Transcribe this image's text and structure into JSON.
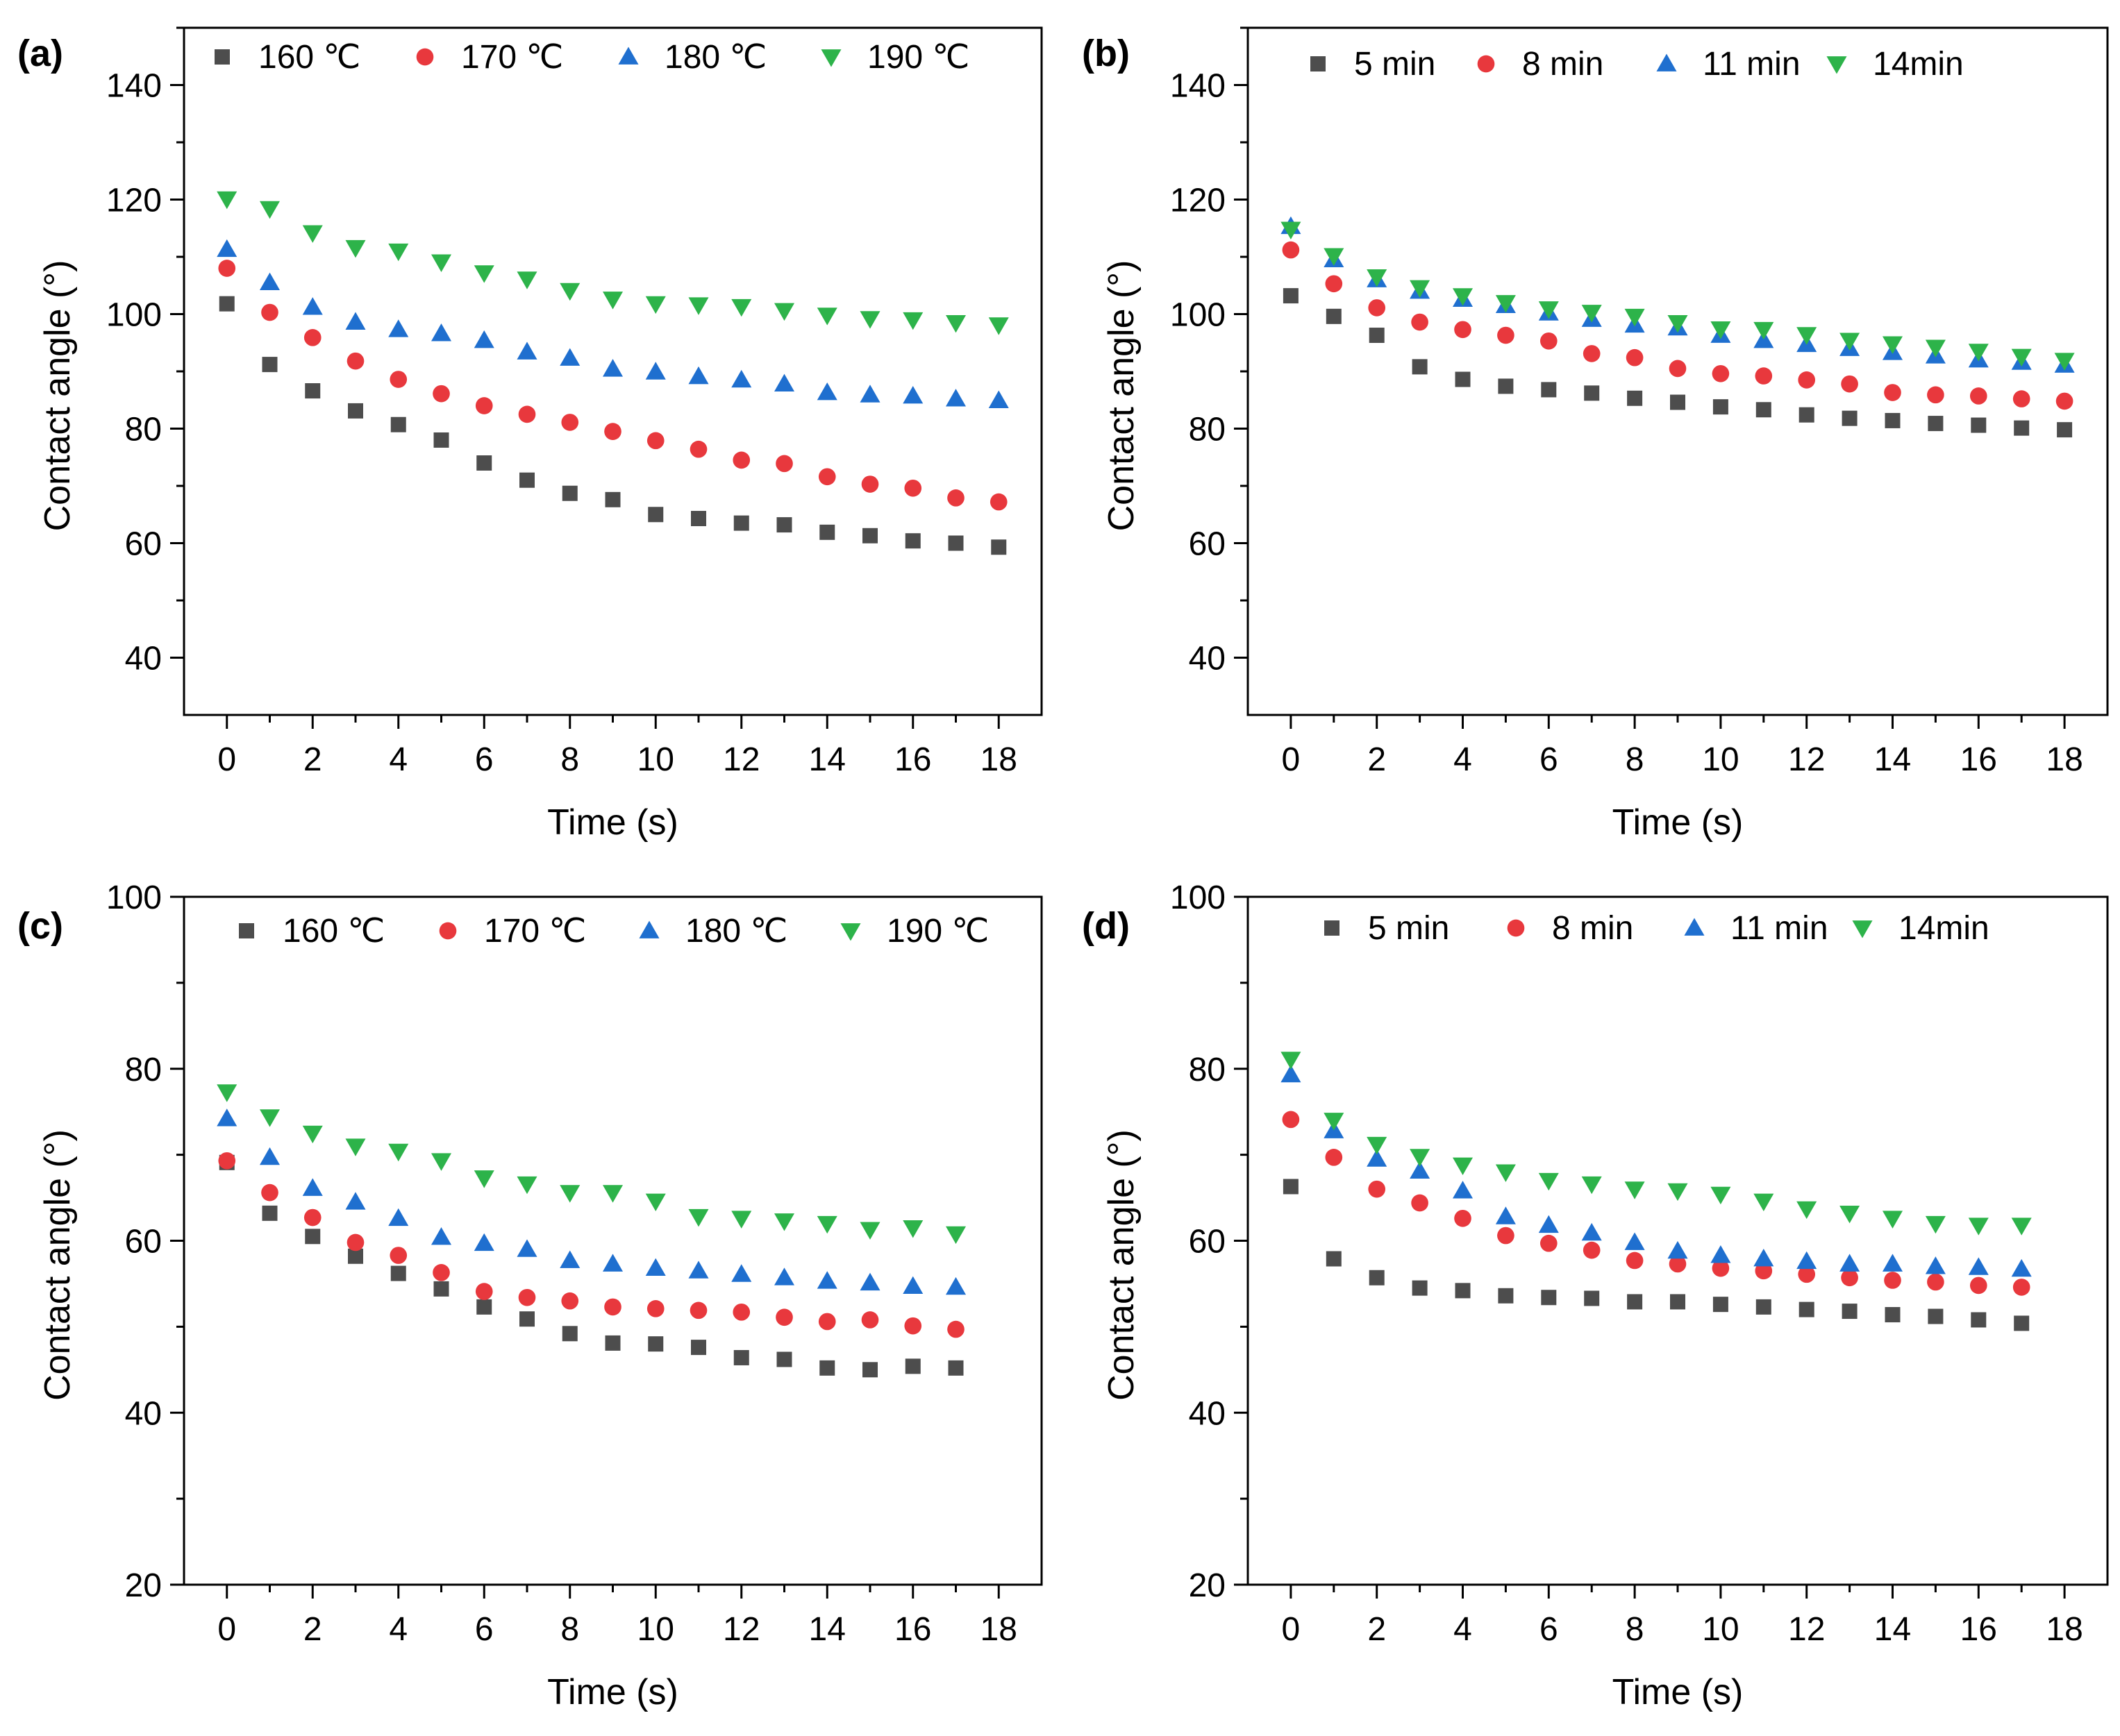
{
  "chart_data": [
    {
      "type": "scatter",
      "panel_label": "(a)",
      "xlabel": "Time (s)",
      "ylabel": "Contact angle (°)",
      "xlim": [
        -1,
        19
      ],
      "ylim": [
        30,
        150
      ],
      "xticks": [
        0,
        2,
        4,
        6,
        8,
        10,
        12,
        14,
        16,
        18
      ],
      "yticks": [
        40,
        60,
        80,
        100,
        120,
        140
      ],
      "legend_position": "top",
      "series": [
        {
          "name": "160 ℃",
          "marker": "square",
          "color": "#4d4d4d",
          "x": [
            0,
            1,
            2,
            3,
            4,
            5,
            6,
            7,
            8,
            9,
            10,
            11,
            12,
            13,
            14,
            15,
            16,
            17,
            18
          ],
          "values": [
            101.8,
            91.2,
            86.6,
            83.1,
            80.7,
            78.0,
            74.0,
            71.0,
            68.7,
            67.6,
            65.0,
            64.3,
            63.5,
            63.2,
            61.9,
            61.3,
            60.4,
            60.0,
            59.3
          ]
        },
        {
          "name": "170 ℃",
          "marker": "circle",
          "color": "#e8383d",
          "x": [
            0,
            1,
            2,
            3,
            4,
            5,
            6,
            7,
            8,
            9,
            10,
            11,
            12,
            13,
            14,
            15,
            16,
            17,
            18
          ],
          "values": [
            108.0,
            100.3,
            95.9,
            91.8,
            88.6,
            86.1,
            84.0,
            82.5,
            81.1,
            79.5,
            77.9,
            76.4,
            74.5,
            73.9,
            71.6,
            70.3,
            69.6,
            67.9,
            67.2
          ]
        },
        {
          "name": "180 ℃",
          "marker": "triangle-up",
          "color": "#1f6fcf",
          "x": [
            0,
            1,
            2,
            3,
            4,
            5,
            6,
            7,
            8,
            9,
            10,
            11,
            12,
            13,
            14,
            15,
            16,
            17,
            18
          ],
          "values": [
            111.3,
            105.5,
            101.2,
            98.6,
            97.3,
            96.6,
            95.4,
            93.4,
            92.3,
            90.4,
            89.9,
            89.1,
            88.5,
            87.8,
            86.3,
            85.9,
            85.7,
            85.2,
            84.9
          ]
        },
        {
          "name": "190 ℃",
          "marker": "triangle-down",
          "color": "#2db34a",
          "x": [
            0,
            1,
            2,
            3,
            4,
            5,
            6,
            7,
            8,
            9,
            10,
            11,
            12,
            13,
            14,
            15,
            16,
            17,
            18
          ],
          "values": [
            120.1,
            118.4,
            114.2,
            111.6,
            111.0,
            109.1,
            107.2,
            106.1,
            104.1,
            102.6,
            101.8,
            101.6,
            101.3,
            100.6,
            99.8,
            99.2,
            99.0,
            98.5,
            98.1
          ]
        }
      ]
    },
    {
      "type": "scatter",
      "panel_label": "(b)",
      "xlabel": "Time (s)",
      "ylabel": "Contact angle (°)",
      "xlim": [
        -1,
        19
      ],
      "ylim": [
        30,
        150
      ],
      "xticks": [
        0,
        2,
        4,
        6,
        8,
        10,
        12,
        14,
        16,
        18
      ],
      "yticks": [
        40,
        60,
        80,
        100,
        120,
        140
      ],
      "legend_position": "top",
      "series": [
        {
          "name": "5 min",
          "marker": "square",
          "color": "#4d4d4d",
          "x": [
            0,
            1,
            2,
            3,
            4,
            5,
            6,
            7,
            8,
            9,
            10,
            11,
            12,
            13,
            14,
            15,
            16,
            17,
            18
          ],
          "values": [
            103.2,
            99.6,
            96.3,
            90.8,
            88.6,
            87.4,
            86.8,
            86.2,
            85.3,
            84.6,
            83.8,
            83.3,
            82.4,
            81.8,
            81.4,
            80.9,
            80.6,
            80.1,
            79.8
          ]
        },
        {
          "name": "8 min",
          "marker": "circle",
          "color": "#e8383d",
          "x": [
            0,
            1,
            2,
            3,
            4,
            5,
            6,
            7,
            8,
            9,
            10,
            11,
            12,
            13,
            14,
            15,
            16,
            17,
            18
          ],
          "values": [
            111.2,
            105.3,
            101.1,
            98.6,
            97.3,
            96.3,
            95.3,
            93.1,
            92.4,
            90.5,
            89.6,
            89.2,
            88.5,
            87.8,
            86.3,
            85.9,
            85.7,
            85.2,
            84.8
          ]
        },
        {
          "name": "11 min",
          "marker": "triangle-up",
          "color": "#1f6fcf",
          "x": [
            0,
            1,
            2,
            3,
            4,
            5,
            6,
            7,
            8,
            9,
            10,
            11,
            12,
            13,
            14,
            15,
            16,
            17,
            18
          ],
          "values": [
            115.3,
            109.5,
            106.0,
            104.0,
            102.6,
            101.5,
            100.2,
            99.1,
            98.1,
            97.6,
            96.3,
            95.4,
            94.7,
            94.0,
            93.3,
            92.7,
            92.0,
            91.6,
            91.1
          ]
        },
        {
          "name": "14min",
          "marker": "triangle-down",
          "color": "#2db34a",
          "x": [
            0,
            1,
            2,
            3,
            4,
            5,
            6,
            7,
            8,
            9,
            10,
            11,
            12,
            13,
            14,
            15,
            16,
            17,
            18
          ],
          "values": [
            114.8,
            110.2,
            106.5,
            104.6,
            103.2,
            102.0,
            100.9,
            100.3,
            99.6,
            98.5,
            97.4,
            97.3,
            96.4,
            95.4,
            94.8,
            94.2,
            93.5,
            92.6,
            91.9
          ]
        }
      ]
    },
    {
      "type": "scatter",
      "panel_label": "(c)",
      "xlabel": "Time (s)",
      "ylabel": "Contact angle (°)",
      "xlim": [
        -1,
        19
      ],
      "ylim": [
        20,
        100
      ],
      "xticks": [
        0,
        2,
        4,
        6,
        8,
        10,
        12,
        14,
        16,
        18
      ],
      "yticks": [
        20,
        40,
        60,
        80,
        100
      ],
      "legend_position": "top",
      "series": [
        {
          "name": "160 ℃",
          "marker": "square",
          "color": "#4d4d4d",
          "x": [
            0,
            1,
            2,
            3,
            4,
            5,
            6,
            7,
            8,
            9,
            10,
            11,
            12,
            13,
            14,
            15,
            16,
            17
          ],
          "values": [
            69.1,
            63.2,
            60.5,
            58.2,
            56.2,
            54.4,
            52.3,
            50.9,
            49.2,
            48.1,
            48.0,
            47.6,
            46.4,
            46.2,
            45.2,
            45.0,
            45.4,
            45.2
          ]
        },
        {
          "name": "170 ℃",
          "marker": "circle",
          "color": "#e8383d",
          "x": [
            0,
            1,
            2,
            3,
            4,
            5,
            6,
            7,
            8,
            9,
            10,
            11,
            12,
            13,
            14,
            15,
            16,
            17
          ],
          "values": [
            69.3,
            65.6,
            62.7,
            59.8,
            58.3,
            56.3,
            54.1,
            53.4,
            53.0,
            52.3,
            52.1,
            51.9,
            51.7,
            51.1,
            50.6,
            50.8,
            50.1,
            49.7
          ]
        },
        {
          "name": "180 ℃",
          "marker": "triangle-up",
          "color": "#1f6fcf",
          "x": [
            0,
            1,
            2,
            3,
            4,
            5,
            6,
            7,
            8,
            9,
            10,
            11,
            12,
            13,
            14,
            15,
            16,
            17
          ],
          "values": [
            74.2,
            69.7,
            66.1,
            64.5,
            62.6,
            60.4,
            59.7,
            59.0,
            57.7,
            57.3,
            56.8,
            56.5,
            56.1,
            55.7,
            55.3,
            55.1,
            54.7,
            54.6
          ]
        },
        {
          "name": "190 ℃",
          "marker": "triangle-down",
          "color": "#2db34a",
          "x": [
            0,
            1,
            2,
            3,
            4,
            5,
            6,
            7,
            8,
            9,
            10,
            11,
            12,
            13,
            14,
            15,
            16,
            17
          ],
          "values": [
            77.3,
            74.4,
            72.5,
            71.0,
            70.4,
            69.3,
            67.3,
            66.6,
            65.6,
            65.6,
            64.6,
            62.8,
            62.6,
            62.3,
            62.0,
            61.3,
            61.5,
            60.8
          ]
        }
      ]
    },
    {
      "type": "scatter",
      "panel_label": "(d)",
      "xlabel": "Time (s)",
      "ylabel": "Contact angle (°)",
      "xlim": [
        -1,
        19
      ],
      "ylim": [
        20,
        100
      ],
      "xticks": [
        0,
        2,
        4,
        6,
        8,
        10,
        12,
        14,
        16,
        18
      ],
      "yticks": [
        20,
        40,
        60,
        80,
        100
      ],
      "legend_position": "top",
      "series": [
        {
          "name": "5 min",
          "marker": "square",
          "color": "#4d4d4d",
          "x": [
            0,
            1,
            2,
            3,
            4,
            5,
            6,
            7,
            8,
            9,
            10,
            11,
            12,
            13,
            14,
            15,
            16,
            17
          ],
          "values": [
            66.3,
            57.9,
            55.7,
            54.5,
            54.2,
            53.6,
            53.4,
            53.3,
            52.9,
            52.9,
            52.6,
            52.3,
            52.0,
            51.8,
            51.4,
            51.2,
            50.8,
            50.4
          ]
        },
        {
          "name": "8 min",
          "marker": "circle",
          "color": "#e8383d",
          "x": [
            0,
            1,
            2,
            3,
            4,
            5,
            6,
            7,
            8,
            9,
            10,
            11,
            12,
            13,
            14,
            15,
            16,
            17
          ],
          "values": [
            74.1,
            69.7,
            66.0,
            64.4,
            62.6,
            60.6,
            59.7,
            58.9,
            57.7,
            57.3,
            56.8,
            56.5,
            56.1,
            55.7,
            55.4,
            55.2,
            54.8,
            54.6
          ]
        },
        {
          "name": "11 min",
          "marker": "triangle-up",
          "color": "#1f6fcf",
          "x": [
            0,
            1,
            2,
            3,
            4,
            5,
            6,
            7,
            8,
            9,
            10,
            11,
            12,
            13,
            14,
            15,
            16,
            17
          ],
          "values": [
            79.3,
            72.8,
            69.5,
            68.1,
            65.8,
            62.8,
            61.8,
            60.9,
            59.8,
            58.8,
            58.3,
            57.9,
            57.6,
            57.3,
            57.3,
            57.0,
            56.9,
            56.7
          ]
        },
        {
          "name": "14min",
          "marker": "triangle-down",
          "color": "#2db34a",
          "x": [
            0,
            1,
            2,
            3,
            4,
            5,
            6,
            7,
            8,
            9,
            10,
            11,
            12,
            13,
            14,
            15,
            16,
            17
          ],
          "values": [
            81.1,
            74.0,
            71.2,
            69.8,
            68.8,
            68.0,
            67.0,
            66.6,
            66.0,
            65.8,
            65.4,
            64.6,
            63.7,
            63.2,
            62.6,
            62.0,
            61.8,
            61.8
          ]
        }
      ]
    }
  ]
}
